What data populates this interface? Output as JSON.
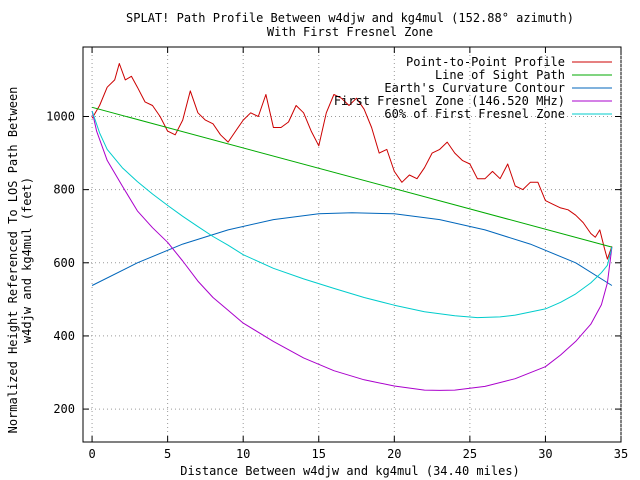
{
  "chart_data": {
    "type": "line",
    "title": {
      "line1": "SPLAT! Path Profile Between w4djw and kg4mul (152.88° azimuth)",
      "line2": "With First Fresnel Zone"
    },
    "xlabel": "Distance Between w4djw and kg4mul (34.40 miles)",
    "ylabel": {
      "line1": "Normalized Height Referenced To LOS Path Between",
      "line2": "w4djw and kg4mul (feet)"
    },
    "xlim": [
      -0.6,
      35
    ],
    "ylim": [
      110,
      1190
    ],
    "xticks": [
      0,
      5,
      10,
      15,
      20,
      25,
      30,
      35
    ],
    "yticks": [
      200,
      400,
      600,
      800,
      1000
    ],
    "grid": true,
    "legend_position": "top-right",
    "series": [
      {
        "name": "Point-to-Point Profile",
        "color": "#cc0000",
        "x": [
          0,
          0.5,
          1,
          1.5,
          1.8,
          2.2,
          2.6,
          3,
          3.5,
          4,
          4.5,
          5,
          5.5,
          6,
          6.5,
          7,
          7.5,
          8,
          8.5,
          9,
          9.5,
          10,
          10.5,
          11,
          11.5,
          12,
          12.5,
          13,
          13.5,
          14,
          14.5,
          15,
          15.5,
          16,
          16.5,
          17,
          17.5,
          18,
          18.5,
          19,
          19.5,
          20,
          20.5,
          21,
          21.5,
          22,
          22.5,
          23,
          23.5,
          24,
          24.5,
          25,
          25.5,
          26,
          26.5,
          27,
          27.5,
          28,
          28.5,
          29,
          29.5,
          30,
          30.5,
          31,
          31.5,
          32,
          32.5,
          33,
          33.3,
          33.6,
          33.9,
          34.1,
          34.4
        ],
        "y": [
          995,
          1030,
          1080,
          1100,
          1145,
          1100,
          1110,
          1080,
          1040,
          1030,
          1000,
          960,
          950,
          990,
          1070,
          1010,
          990,
          980,
          950,
          930,
          960,
          990,
          1010,
          1000,
          1060,
          970,
          970,
          985,
          1030,
          1010,
          960,
          920,
          1010,
          1060,
          1050,
          1030,
          1050,
          1020,
          970,
          900,
          910,
          850,
          820,
          840,
          830,
          860,
          900,
          910,
          930,
          900,
          880,
          870,
          830,
          830,
          850,
          830,
          870,
          810,
          800,
          820,
          820,
          770,
          760,
          750,
          745,
          730,
          710,
          680,
          670,
          690,
          640,
          610,
          645
        ]
      },
      {
        "name": "Line of Sight Path",
        "color": "#00aa00",
        "x": [
          0,
          34.4
        ],
        "y": [
          1025,
          643
        ]
      },
      {
        "name": "Earth's Curvature Contour",
        "color": "#0066bb",
        "x": [
          0,
          3,
          6,
          9,
          12,
          15,
          17.2,
          20,
          23,
          26,
          29,
          32,
          34.4
        ],
        "y": [
          538,
          600,
          651,
          690,
          718,
          734,
          737,
          734,
          718,
          690,
          651,
          600,
          538
        ]
      },
      {
        "name": "First Fresnel Zone (146.520 MHz)",
        "color": "#aa00cc",
        "x": [
          0,
          0.3,
          1,
          2,
          3,
          4,
          5,
          6,
          7,
          8,
          9,
          10,
          12,
          14,
          16,
          18,
          20,
          22,
          23,
          24,
          26,
          28,
          30,
          31,
          32,
          33,
          33.7,
          34.1,
          34.4
        ],
        "y": [
          1015,
          960,
          880,
          810,
          742,
          696,
          656,
          605,
          550,
          505,
          470,
          435,
          385,
          340,
          305,
          280,
          263,
          252,
          251,
          252,
          262,
          283,
          316,
          348,
          385,
          432,
          485,
          545,
          643
        ]
      },
      {
        "name": "60% of First Fresnel Zone",
        "color": "#00cccc",
        "x": [
          0,
          0.5,
          1,
          2,
          3,
          4,
          5,
          6,
          7,
          8,
          9,
          10,
          12,
          14,
          16,
          18,
          20,
          22,
          24,
          25.5,
          27,
          28,
          30,
          31,
          32,
          33,
          33.7,
          34.1,
          34.4
        ],
        "y": [
          1015,
          955,
          910,
          860,
          822,
          788,
          757,
          727,
          699,
          672,
          648,
          622,
          585,
          556,
          530,
          505,
          484,
          466,
          455,
          450,
          452,
          457,
          474,
          492,
          515,
          545,
          573,
          593,
          643
        ]
      }
    ]
  }
}
